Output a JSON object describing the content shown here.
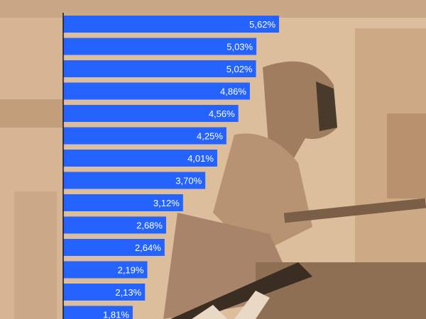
{
  "chart_data": {
    "type": "bar",
    "orientation": "horizontal",
    "title": "",
    "xlabel": "",
    "ylabel": "",
    "categories": [],
    "values": [
      5.62,
      5.03,
      5.02,
      4.86,
      4.56,
      4.25,
      4.01,
      3.7,
      3.12,
      2.68,
      2.64,
      2.19,
      2.13,
      1.81
    ],
    "labels": [
      "5,62%",
      "5,03%",
      "5,02%",
      "4,86%",
      "4,56%",
      "4,25%",
      "4,01%",
      "3,70%",
      "3,12%",
      "2,68%",
      "2,64%",
      "2,19%",
      "2,13%",
      "1,81%"
    ],
    "xlim": [
      0,
      6
    ],
    "grid": false,
    "legend": "none",
    "colors": {
      "bar": "#2563ff",
      "label": "#ffffff",
      "axis": "#1a1a1a",
      "background": "#d9b896"
    }
  },
  "background": {
    "description_icon": "welder-photo-background"
  }
}
